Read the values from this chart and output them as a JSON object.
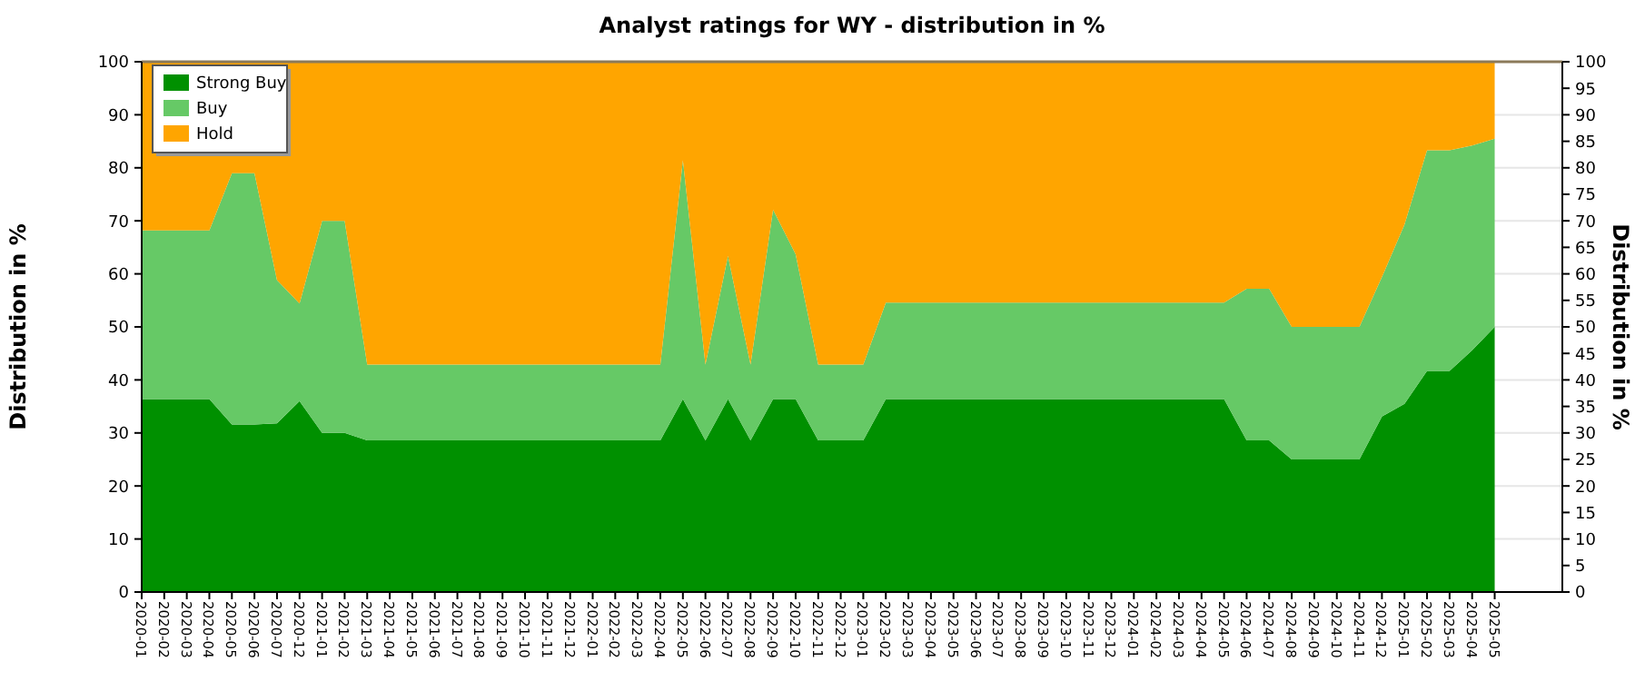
{
  "chart_data": {
    "type": "area",
    "stacked": true,
    "title": "Analyst ratings for WY - distribution in %",
    "ylabel": "Distribution in %",
    "y2label": "Distribution in %",
    "categories": [
      "2020-01",
      "2020-02",
      "2020-03",
      "2020-04",
      "2020-05",
      "2020-06",
      "2020-07",
      "2020-12",
      "2021-01",
      "2021-02",
      "2021-03",
      "2021-04",
      "2021-05",
      "2021-06",
      "2021-07",
      "2021-08",
      "2021-09",
      "2021-10",
      "2021-11",
      "2021-12",
      "2022-01",
      "2022-02",
      "2022-03",
      "2022-04",
      "2022-05",
      "2022-06",
      "2022-07",
      "2022-08",
      "2022-09",
      "2022-10",
      "2022-11",
      "2022-12",
      "2023-01",
      "2023-02",
      "2023-03",
      "2023-04",
      "2023-05",
      "2023-06",
      "2023-07",
      "2023-08",
      "2023-09",
      "2023-10",
      "2023-11",
      "2023-12",
      "2024-01",
      "2024-02",
      "2024-03",
      "2024-04",
      "2024-05",
      "2024-06",
      "2024-07",
      "2024-08",
      "2024-09",
      "2024-10",
      "2024-11",
      "2024-12",
      "2025-01",
      "2025-02",
      "2025-03",
      "2025-04",
      "2025-05"
    ],
    "series": [
      {
        "name": "Strong Buy",
        "color": "#009000",
        "values": [
          36.4,
          36.4,
          36.4,
          36.4,
          31.6,
          31.6,
          31.8,
          36.0,
          30,
          30,
          28.6,
          28.6,
          28.6,
          28.6,
          28.6,
          28.6,
          28.6,
          28.6,
          28.6,
          28.6,
          28.6,
          28.6,
          28.6,
          28.6,
          36.4,
          28.6,
          36.4,
          28.6,
          36.4,
          36.4,
          28.6,
          28.6,
          28.6,
          36.4,
          36.4,
          36.4,
          36.4,
          36.4,
          36.4,
          36.4,
          36.4,
          36.4,
          36.4,
          36.4,
          36.4,
          36.4,
          36.4,
          36.4,
          36.4,
          28.6,
          28.6,
          25,
          25,
          25,
          25,
          33.1,
          35.5,
          41.7,
          41.7,
          45.6,
          50
        ]
      },
      {
        "name": "Buy",
        "color": "#66c966",
        "values": [
          31.8,
          31.8,
          31.8,
          31.8,
          47.4,
          47.4,
          27.0,
          18.4,
          40,
          40,
          14.3,
          14.3,
          14.3,
          14.3,
          14.3,
          14.3,
          14.3,
          14.3,
          14.3,
          14.3,
          14.3,
          14.3,
          14.3,
          14.3,
          45.0,
          14.3,
          27.0,
          14.3,
          35.7,
          27.3,
          14.3,
          14.3,
          14.3,
          18.2,
          18.2,
          18.2,
          18.2,
          18.2,
          18.2,
          18.2,
          18.2,
          18.2,
          18.2,
          18.2,
          18.2,
          18.2,
          18.2,
          18.2,
          18.2,
          28.6,
          28.6,
          25,
          25,
          25,
          25,
          26.3,
          33.8,
          41.6,
          41.6,
          38.6,
          35.5
        ]
      },
      {
        "name": "Hold",
        "color": "#ffa500",
        "values": [
          31.8,
          31.8,
          31.8,
          31.8,
          21.0,
          21.0,
          41.2,
          45.6,
          30,
          30,
          57.1,
          57.1,
          57.1,
          57.1,
          57.1,
          57.1,
          57.1,
          57.1,
          57.1,
          57.1,
          57.1,
          57.1,
          57.1,
          57.1,
          18.6,
          57.1,
          36.6,
          57.1,
          27.9,
          36.3,
          57.1,
          57.1,
          57.1,
          45.4,
          45.4,
          45.4,
          45.4,
          45.4,
          45.4,
          45.4,
          45.4,
          45.4,
          45.4,
          45.4,
          45.4,
          45.4,
          45.4,
          45.4,
          45.4,
          42.8,
          42.8,
          50,
          50,
          50,
          50,
          40.6,
          30.7,
          16.7,
          16.7,
          15.8,
          14.5
        ]
      }
    ],
    "ylim": [
      0,
      100
    ],
    "yticks": [
      0,
      10,
      20,
      30,
      40,
      50,
      60,
      70,
      80,
      90,
      100
    ],
    "y2lim": [
      0,
      100
    ],
    "y2ticks": [
      0,
      5,
      10,
      15,
      20,
      25,
      30,
      35,
      40,
      45,
      50,
      55,
      60,
      65,
      70,
      75,
      80,
      85,
      90,
      95,
      100
    ],
    "grid": "y",
    "legend": "top left"
  }
}
